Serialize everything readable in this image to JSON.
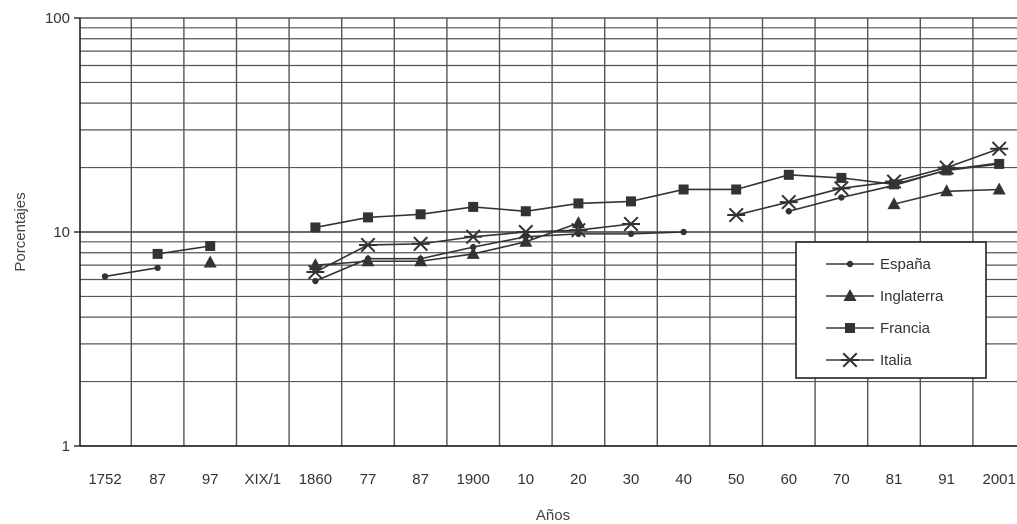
{
  "chart_data": {
    "type": "line",
    "title": "",
    "xlabel": "Años",
    "ylabel": "Porcentajes",
    "y_scale": "log",
    "ylim": [
      1,
      100
    ],
    "y_ticks": [
      1,
      10,
      100
    ],
    "y_tick_labels": [
      "1",
      "10",
      "100"
    ],
    "categories": [
      "1752",
      "87",
      "97",
      "XIX/1",
      "1860",
      "77",
      "87",
      "1900",
      "10",
      "20",
      "30",
      "40",
      "50",
      "60",
      "70",
      "81",
      "91",
      "2001"
    ],
    "grid": "on",
    "legend_position": "bottom-right",
    "colors": {
      "line": "#333333",
      "grid": "#555555",
      "background": "#ffffff"
    },
    "series": [
      {
        "name": "España",
        "marker": "dot",
        "values": [
          6.2,
          6.8,
          null,
          null,
          5.9,
          7.5,
          7.5,
          8.5,
          9.5,
          9.8,
          9.8,
          10.0,
          null,
          12.5,
          14.5,
          16.5,
          19.5,
          21.0
        ]
      },
      {
        "name": "Inglaterra",
        "marker": "triangle",
        "values": [
          null,
          null,
          7.2,
          null,
          7.0,
          7.3,
          7.3,
          7.9,
          9.0,
          11.0,
          null,
          null,
          null,
          null,
          null,
          13.5,
          15.5,
          15.8
        ]
      },
      {
        "name": "Francia",
        "marker": "square",
        "values": [
          null,
          7.9,
          8.6,
          null,
          10.5,
          11.7,
          12.1,
          13.1,
          12.5,
          13.6,
          13.9,
          15.8,
          15.8,
          18.5,
          17.9,
          16.7,
          19.4,
          20.8
        ]
      },
      {
        "name": "Italia",
        "marker": "asterisk",
        "values": [
          null,
          null,
          null,
          null,
          6.5,
          8.7,
          8.8,
          9.5,
          10.0,
          10.2,
          10.9,
          null,
          12.0,
          13.8,
          16.0,
          17.2,
          20.0,
          24.5
        ]
      }
    ]
  }
}
